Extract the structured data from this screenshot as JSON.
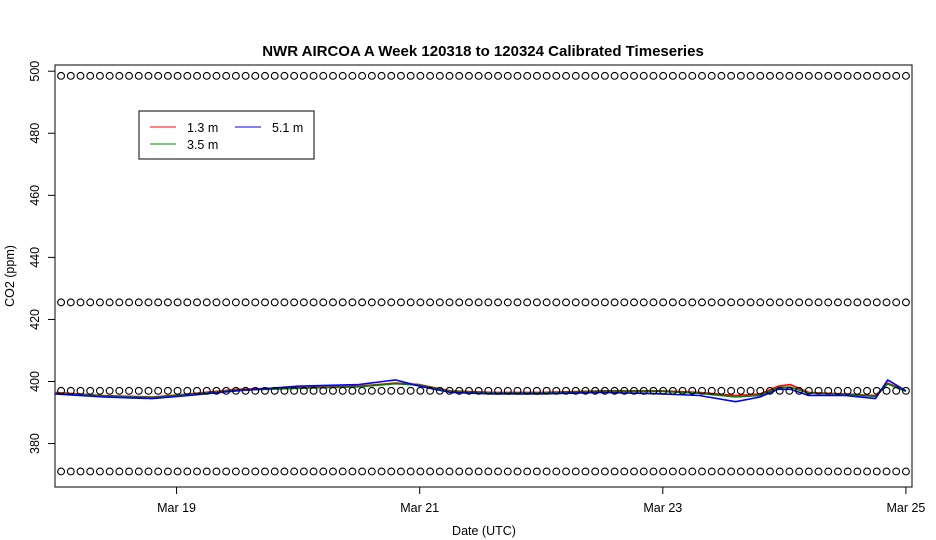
{
  "chart_data": {
    "type": "line",
    "title": "NWR AIRCOA A  Week 120318 to 120324  Calibrated Timeseries",
    "xlabel": "Date (UTC)",
    "ylabel": "CO2 (ppm)",
    "x_unit": "days of March 2012 (UTC)",
    "xlim": [
      18.0,
      25.05
    ],
    "ylim": [
      366,
      502
    ],
    "x_ticks": [
      {
        "value": 19,
        "label": "Mar 19"
      },
      {
        "value": 21,
        "label": "Mar 21"
      },
      {
        "value": 23,
        "label": "Mar 23"
      },
      {
        "value": 25,
        "label": "Mar 25"
      }
    ],
    "y_ticks": [
      380,
      400,
      420,
      440,
      460,
      480,
      500
    ],
    "grid": false,
    "legend": {
      "placement": "top-left",
      "entries": [
        {
          "label": "1.3 m",
          "color": "#ff0000"
        },
        {
          "label": "3.5 m",
          "color": "#008000"
        },
        {
          "label": "5.1 m",
          "color": "#0000ff"
        }
      ]
    },
    "series": [
      {
        "name": "1.3 m",
        "color": "#ff0000",
        "x": [
          18.0,
          18.4,
          18.8,
          19.1,
          19.5,
          20.0,
          20.5,
          20.8,
          21.0,
          21.25,
          21.6,
          22.0,
          22.5,
          23.0,
          23.3,
          23.6,
          23.8,
          23.95,
          24.05,
          24.2,
          24.5,
          24.75,
          24.85,
          25.0
        ],
        "values": [
          396.5,
          395.5,
          395.0,
          396.0,
          397.5,
          398.0,
          398.5,
          399.5,
          399.0,
          397.0,
          396.5,
          396.5,
          397.0,
          397.0,
          396.5,
          395.5,
          396.0,
          398.5,
          399.0,
          396.5,
          396.0,
          395.5,
          399.5,
          397.0
        ]
      },
      {
        "name": "3.5 m",
        "color": "#008000",
        "x": [
          18.0,
          18.4,
          18.8,
          19.1,
          19.5,
          20.0,
          20.5,
          20.8,
          21.0,
          21.25,
          21.6,
          22.0,
          22.5,
          23.0,
          23.3,
          23.6,
          23.8,
          23.95,
          24.05,
          24.2,
          24.5,
          24.75,
          24.85,
          25.0
        ],
        "values": [
          396.2,
          395.3,
          394.8,
          395.8,
          397.2,
          397.8,
          398.3,
          399.3,
          398.8,
          396.8,
          396.3,
          396.3,
          396.8,
          396.8,
          396.2,
          395.0,
          395.5,
          398.0,
          398.2,
          396.2,
          395.8,
          395.2,
          399.2,
          396.8
        ]
      },
      {
        "name": "5.1 m",
        "color": "#0000ff",
        "x": [
          18.0,
          18.4,
          18.8,
          19.1,
          19.5,
          20.0,
          20.5,
          20.8,
          21.0,
          21.25,
          21.6,
          22.0,
          22.5,
          23.0,
          23.3,
          23.6,
          23.8,
          23.95,
          24.05,
          24.2,
          24.5,
          24.75,
          24.85,
          25.0
        ],
        "values": [
          396.0,
          395.0,
          394.5,
          395.5,
          397.0,
          398.5,
          399.0,
          400.5,
          398.5,
          396.5,
          396.0,
          396.0,
          396.5,
          396.0,
          395.5,
          393.5,
          395.0,
          397.5,
          397.5,
          395.5,
          395.5,
          394.5,
          400.5,
          397.0
        ]
      },
      {
        "name": "",
        "marker": "circle",
        "color": "#000000",
        "x_start": 18.05,
        "x_end": 25.0,
        "count": 88,
        "levels": [
          498.5,
          425.5,
          397.0,
          371.0
        ]
      }
    ]
  }
}
